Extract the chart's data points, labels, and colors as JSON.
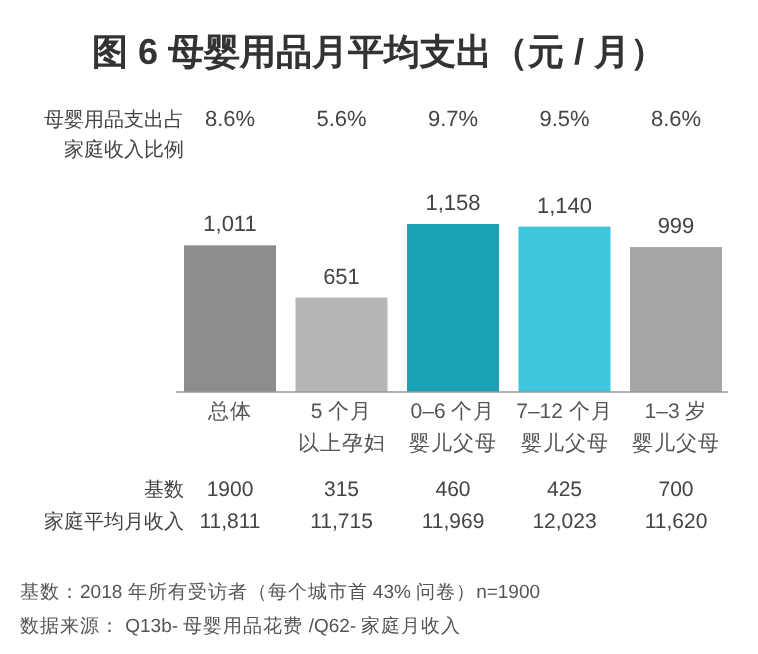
{
  "chart_data": {
    "type": "bar",
    "title": "图 6  母婴用品月平均支出（元 / 月）",
    "categories": [
      "总体",
      "5 个月",
      "0–6 个月",
      "7–12 个月",
      "1–3 岁"
    ],
    "values": [
      1011,
      651,
      1158,
      1140,
      999
    ],
    "value_labels": [
      "1,011",
      "651",
      "1,158",
      "1,140",
      "999"
    ],
    "colors": [
      "#8c8c8c",
      "#b5b5b5",
      "#1ba3b3",
      "#3fc6dc",
      "#a6a6a6"
    ],
    "annotations": [
      "母婴用品支出占",
      "家庭收入比例",
      "8.6%",
      "5.6%",
      "9.7%",
      "9.5%",
      "8.6%",
      "以上孕妇",
      "婴儿父母",
      "婴儿父母",
      "婴儿父母",
      "基数",
      "1900",
      "315",
      "460",
      "425",
      "700",
      "家庭平均月收入",
      "11,811",
      "11,715",
      "11,969",
      "12,023",
      "11,620",
      "基数：2018 年所有受访者（每个城市首 43% 问卷）n=1900",
      "数据来源： Q13b- 母婴用品花费 /Q62- 家庭月收入"
    ]
  }
}
